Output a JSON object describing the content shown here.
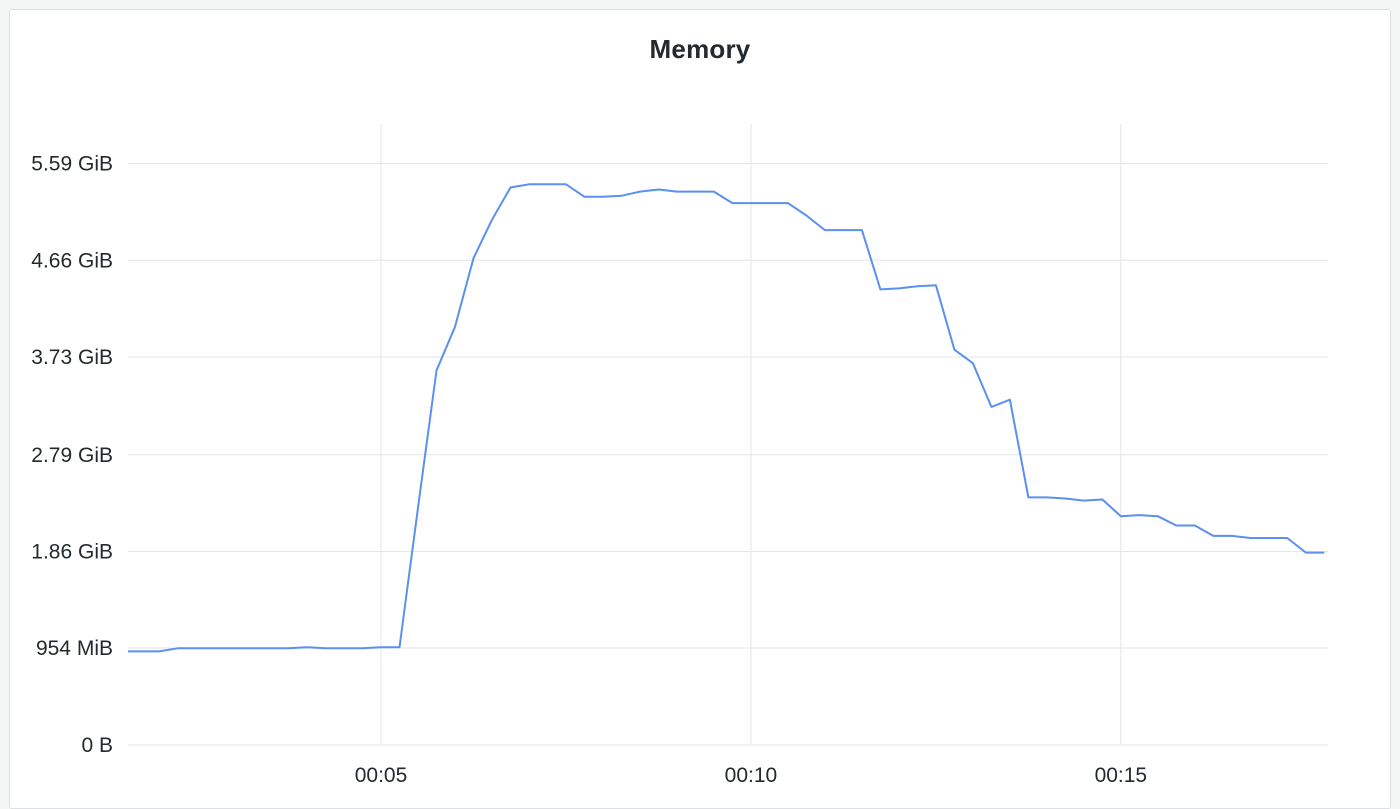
{
  "panel": {
    "title": "Memory"
  },
  "chart_data": {
    "type": "line",
    "title": "Memory",
    "xlabel": "",
    "ylabel": "",
    "x_unit": "minutes",
    "x_ticks": [
      {
        "value": 5,
        "label": "00:05"
      },
      {
        "value": 10,
        "label": "00:10"
      },
      {
        "value": 15,
        "label": "00:15"
      }
    ],
    "y_unit": "GiB",
    "y_ticks": [
      {
        "value": 0,
        "label": "0 B"
      },
      {
        "value": 0.932,
        "label": "954 MiB"
      },
      {
        "value": 1.86,
        "label": "1.86 GiB"
      },
      {
        "value": 2.79,
        "label": "2.79 GiB"
      },
      {
        "value": 3.73,
        "label": "3.73 GiB"
      },
      {
        "value": 4.66,
        "label": "4.66 GiB"
      },
      {
        "value": 5.59,
        "label": "5.59 GiB"
      }
    ],
    "xlim": [
      1.58,
      17.8
    ],
    "ylim": [
      0,
      5.97
    ],
    "grid": true,
    "legend": "none",
    "line_color": "#5b8ff0",
    "series": [
      {
        "x": [
          1.58,
          2.0,
          2.25,
          2.75,
          3.25,
          3.75,
          4.0,
          4.25,
          4.75,
          5.0,
          5.25,
          5.5,
          5.75,
          6.0,
          6.25,
          6.5,
          6.75,
          7.0,
          7.25,
          7.5,
          7.75,
          8.0,
          8.25,
          8.5,
          8.75,
          9.0,
          9.25,
          9.5,
          9.75,
          10.0,
          10.25,
          10.5,
          10.75,
          11.0,
          11.25,
          11.5,
          11.75,
          12.0,
          12.25,
          12.5,
          12.75,
          13.0,
          13.25,
          13.5,
          13.75,
          14.0,
          14.25,
          14.5,
          14.75,
          15.0,
          15.25,
          15.5,
          15.75,
          16.0,
          16.25,
          16.5,
          16.75,
          17.0,
          17.25,
          17.5,
          17.75
        ],
        "y": [
          0.9,
          0.9,
          0.93,
          0.93,
          0.93,
          0.93,
          0.94,
          0.93,
          0.93,
          0.94,
          0.94,
          2.28,
          3.6,
          4.02,
          4.68,
          5.05,
          5.36,
          5.39,
          5.39,
          5.39,
          5.27,
          5.27,
          5.28,
          5.32,
          5.34,
          5.32,
          5.32,
          5.32,
          5.21,
          5.21,
          5.21,
          5.21,
          5.09,
          4.95,
          4.95,
          4.95,
          4.38,
          4.39,
          4.41,
          4.42,
          3.8,
          3.67,
          3.25,
          3.32,
          2.38,
          2.38,
          2.37,
          2.35,
          2.36,
          2.2,
          2.21,
          2.2,
          2.11,
          2.11,
          2.01,
          2.01,
          1.99,
          1.99,
          1.99,
          1.85,
          1.85
        ]
      }
    ]
  }
}
